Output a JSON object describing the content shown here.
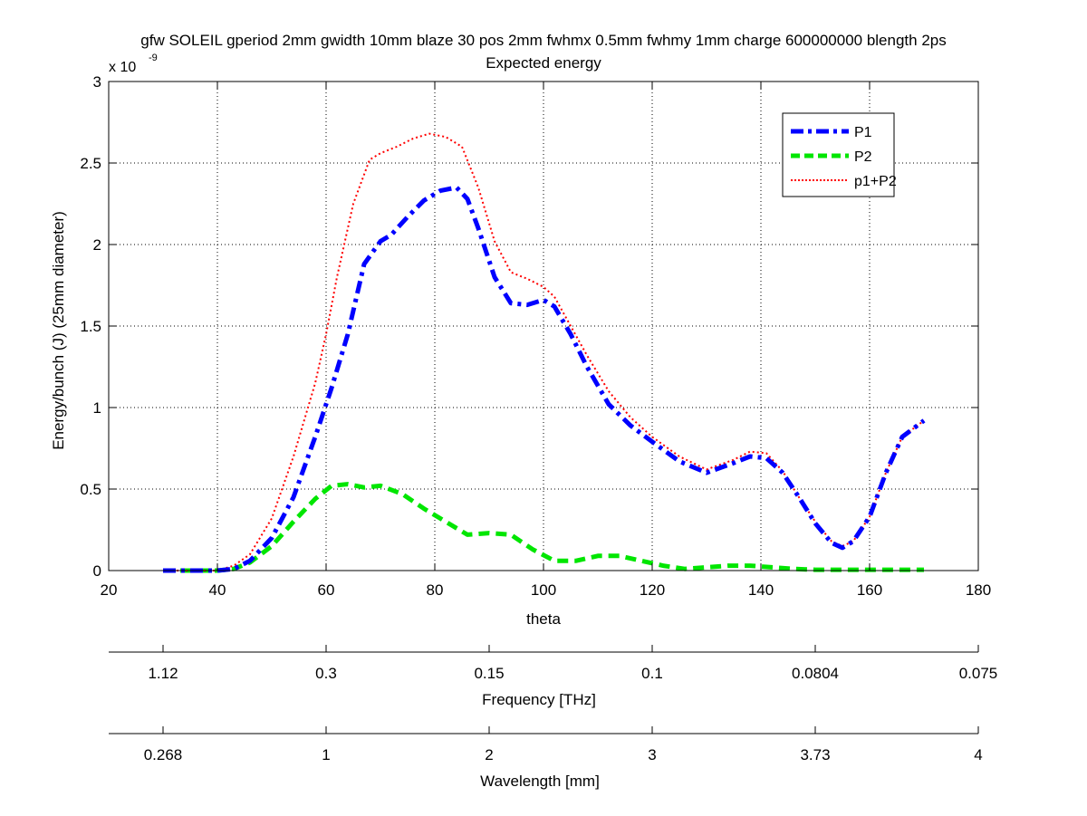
{
  "chart_data": {
    "type": "line",
    "title": "gfw SOLEIL gperiod 2mm gwidth 10mm blaze 30 pos 2mm fwhmx 0.5mm fwhmy 1mm charge 600000000 blength 2ps",
    "subtitle": "Expected energy",
    "xlabel": "theta",
    "ylabel": "Energy/bunch (J) (25mm diameter)",
    "y_multiplier_label": "x 10",
    "y_multiplier_exp": "-9",
    "xlim": [
      20,
      180
    ],
    "ylim": [
      0,
      3
    ],
    "x_ticks": [
      "20",
      "40",
      "60",
      "80",
      "100",
      "120",
      "140",
      "160",
      "180"
    ],
    "y_ticks": [
      "0",
      "0.5",
      "1",
      "1.5",
      "2",
      "2.5",
      "3"
    ],
    "grid": true,
    "legend_position": "top-right",
    "series": [
      {
        "name": "P1",
        "color": "#0000ff",
        "style": "dashdot",
        "x": [
          30,
          35,
          40,
          43,
          46,
          50,
          54,
          58,
          61,
          64,
          67,
          70,
          72,
          75,
          78,
          81,
          84,
          86,
          88,
          91,
          94,
          97,
          100,
          102,
          105,
          108,
          112,
          116,
          120,
          125,
          130,
          135,
          138,
          141,
          144,
          147,
          150,
          153,
          155,
          157,
          160,
          163,
          166,
          170
        ],
        "y": [
          0,
          0,
          0,
          0.01,
          0.06,
          0.2,
          0.45,
          0.82,
          1.12,
          1.45,
          1.88,
          2.02,
          2.06,
          2.17,
          2.27,
          2.33,
          2.35,
          2.28,
          2.1,
          1.8,
          1.64,
          1.63,
          1.66,
          1.62,
          1.45,
          1.25,
          1.02,
          0.89,
          0.79,
          0.67,
          0.6,
          0.66,
          0.7,
          0.69,
          0.6,
          0.45,
          0.29,
          0.17,
          0.14,
          0.18,
          0.33,
          0.6,
          0.82,
          0.92
        ]
      },
      {
        "name": "P2",
        "color": "#00e600",
        "style": "dashed",
        "x": [
          30,
          35,
          40,
          43,
          46,
          50,
          54,
          58,
          61,
          64,
          67,
          70,
          74,
          78,
          82,
          86,
          90,
          94,
          98,
          102,
          106,
          110,
          114,
          118,
          122,
          126,
          130,
          134,
          138,
          142,
          146,
          150,
          155,
          160,
          165,
          170
        ],
        "y": [
          0,
          0,
          0,
          0.01,
          0.05,
          0.15,
          0.3,
          0.44,
          0.52,
          0.53,
          0.51,
          0.52,
          0.47,
          0.38,
          0.3,
          0.22,
          0.23,
          0.22,
          0.13,
          0.06,
          0.06,
          0.09,
          0.09,
          0.06,
          0.03,
          0.01,
          0.02,
          0.03,
          0.03,
          0.02,
          0.01,
          0.005,
          0.005,
          0.005,
          0.005,
          0.005
        ]
      },
      {
        "name": "p1+P2",
        "color": "#ff0000",
        "style": "dotted",
        "x": [
          30,
          35,
          40,
          43,
          46,
          50,
          54,
          58,
          60,
          62,
          65,
          68,
          70,
          73,
          76,
          79,
          82,
          85,
          88,
          91,
          94,
          97,
          100,
          102,
          105,
          108,
          112,
          116,
          120,
          125,
          130,
          135,
          138,
          141,
          144,
          147,
          150,
          153,
          155,
          157,
          160,
          163,
          166,
          170
        ],
        "y": [
          0,
          0,
          0,
          0.03,
          0.1,
          0.32,
          0.7,
          1.15,
          1.45,
          1.8,
          2.25,
          2.52,
          2.56,
          2.6,
          2.65,
          2.68,
          2.66,
          2.6,
          2.35,
          2.02,
          1.83,
          1.79,
          1.74,
          1.68,
          1.5,
          1.32,
          1.1,
          0.94,
          0.82,
          0.7,
          0.62,
          0.68,
          0.73,
          0.72,
          0.61,
          0.45,
          0.3,
          0.18,
          0.15,
          0.18,
          0.33,
          0.6,
          0.82,
          0.92
        ]
      }
    ],
    "frequency_axis": {
      "label": "Frequency [THz]",
      "ticks": [
        {
          "theta": 30,
          "label": "1.12"
        },
        {
          "theta": 60,
          "label": "0.3"
        },
        {
          "theta": 90,
          "label": "0.15"
        },
        {
          "theta": 120,
          "label": "0.1"
        },
        {
          "theta": 150,
          "label": "0.0804"
        },
        {
          "theta": 180,
          "label": "0.075"
        }
      ]
    },
    "wavelength_axis": {
      "label": "Wavelength [mm]",
      "ticks": [
        {
          "theta": 30,
          "label": "0.268"
        },
        {
          "theta": 60,
          "label": "1"
        },
        {
          "theta": 90,
          "label": "2"
        },
        {
          "theta": 120,
          "label": "3"
        },
        {
          "theta": 150,
          "label": "3.73"
        },
        {
          "theta": 180,
          "label": "4"
        }
      ]
    }
  }
}
